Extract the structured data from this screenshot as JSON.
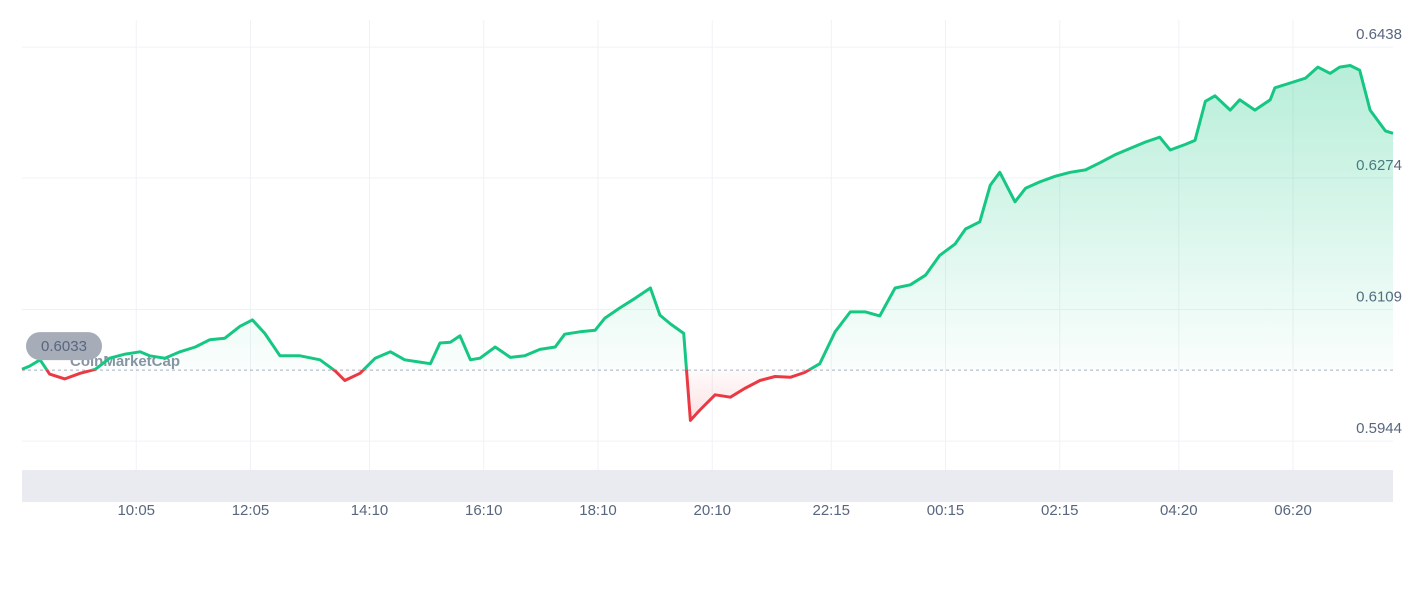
{
  "chart_data": {
    "type": "line",
    "watermark": "CoinMarketCap",
    "baseline": 0.6033,
    "up_color": "#16c784",
    "down_color": "#ea3943",
    "x": [
      0,
      8,
      19,
      29,
      45,
      61,
      77,
      92,
      108,
      124,
      134,
      150,
      166,
      182,
      197,
      213,
      229,
      242,
      255,
      271,
      292,
      313,
      329,
      339,
      355,
      371,
      387,
      402,
      418,
      429,
      439,
      450,
      460,
      471,
      481,
      497,
      513,
      528,
      544,
      560,
      570,
      586,
      602,
      612,
      628,
      644,
      660,
      670,
      681,
      695,
      702,
      712,
      728,
      744,
      759,
      775,
      791,
      807,
      822,
      838,
      854,
      870,
      886,
      901,
      917,
      933,
      949,
      964,
      980,
      991,
      1006,
      1017,
      1027,
      1043,
      1054,
      1069,
      1085,
      1101,
      1117,
      1132,
      1148,
      1164,
      1180,
      1195,
      1206,
      1222,
      1232,
      1243,
      1253,
      1269,
      1279,
      1295,
      1311,
      1316,
      1332,
      1348,
      1361,
      1374,
      1384,
      1395,
      1405,
      1416,
      1432,
      1440
    ],
    "values": [
      0.6034,
      0.6038,
      0.6046,
      0.6028,
      0.6022,
      0.6029,
      0.6034,
      0.6048,
      0.6053,
      0.6056,
      0.6051,
      0.6048,
      0.6056,
      0.6062,
      0.6071,
      0.6073,
      0.6088,
      0.6096,
      0.6079,
      0.6051,
      0.6051,
      0.6046,
      0.6032,
      0.602,
      0.6029,
      0.6048,
      0.6056,
      0.6046,
      0.6043,
      0.6041,
      0.6067,
      0.6068,
      0.6076,
      0.6046,
      0.6048,
      0.6062,
      0.6049,
      0.6051,
      0.6059,
      0.6062,
      0.6078,
      0.6081,
      0.6083,
      0.6098,
      0.6111,
      0.6123,
      0.6136,
      0.6102,
      0.6091,
      0.6079,
      0.597,
      0.5983,
      0.6002,
      0.5999,
      0.601,
      0.602,
      0.6025,
      0.6024,
      0.603,
      0.6041,
      0.6081,
      0.6106,
      0.6106,
      0.6101,
      0.6136,
      0.614,
      0.6152,
      0.6177,
      0.6191,
      0.621,
      0.6219,
      0.6265,
      0.6281,
      0.6244,
      0.6261,
      0.6269,
      0.6276,
      0.6281,
      0.6284,
      0.6293,
      0.6303,
      0.6311,
      0.6319,
      0.6325,
      0.6309,
      0.6316,
      0.6321,
      0.637,
      0.6377,
      0.6359,
      0.6372,
      0.6359,
      0.6372,
      0.6387,
      0.6393,
      0.6399,
      0.6413,
      0.6405,
      0.6413,
      0.6415,
      0.6409,
      0.6359,
      0.6333,
      0.633
    ],
    "xlim": [
      0,
      1440
    ],
    "xticks": [
      {
        "value": 120,
        "label": "10:05"
      },
      {
        "value": 240,
        "label": "12:05"
      },
      {
        "value": 365,
        "label": "14:10"
      },
      {
        "value": 485,
        "label": "16:10"
      },
      {
        "value": 605,
        "label": "18:10"
      },
      {
        "value": 725,
        "label": "20:10"
      },
      {
        "value": 850,
        "label": "22:15"
      },
      {
        "value": 970,
        "label": "00:15"
      },
      {
        "value": 1090,
        "label": "02:15"
      },
      {
        "value": 1215,
        "label": "04:20"
      },
      {
        "value": 1335,
        "label": "06:20"
      }
    ],
    "ylim": [
      0.5904,
      0.6472
    ],
    "yticks": [
      0.5944,
      0.6109,
      0.6274,
      0.6438
    ],
    "grid": true
  }
}
